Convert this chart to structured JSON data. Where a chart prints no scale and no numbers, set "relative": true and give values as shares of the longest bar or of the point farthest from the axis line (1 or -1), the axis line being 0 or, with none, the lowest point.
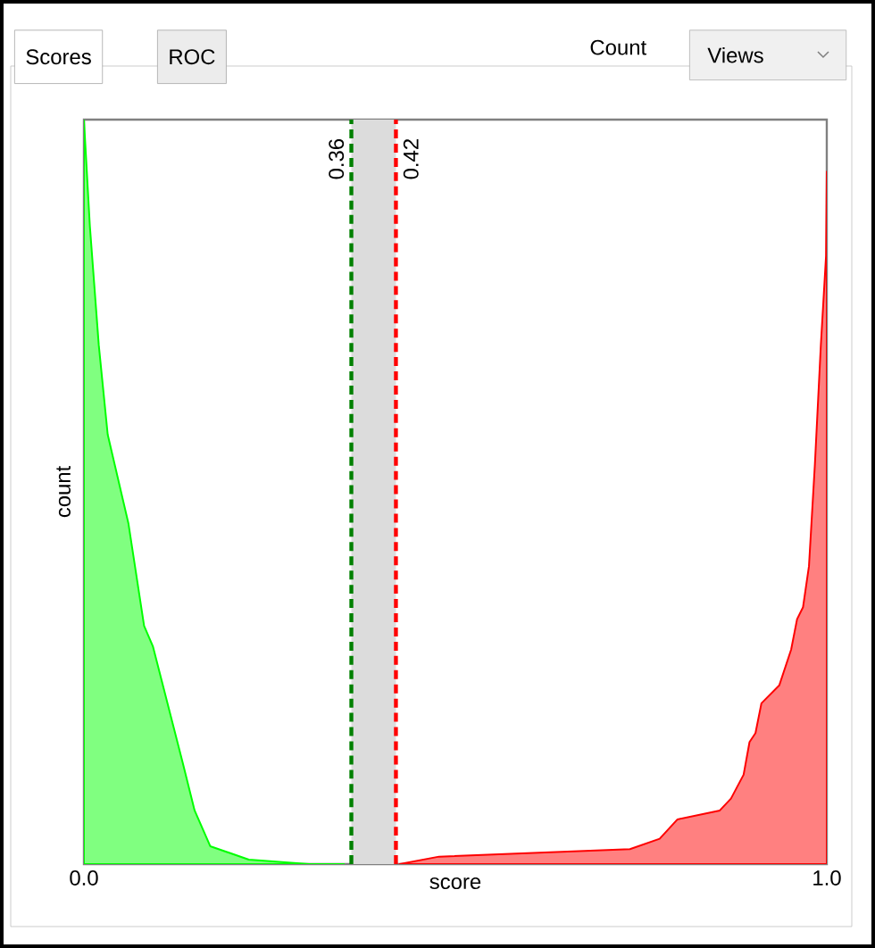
{
  "chart_data": {
    "type": "area",
    "relative": true,
    "xlabel": "score",
    "ylabel": "count",
    "xlim": [
      0,
      1
    ],
    "xticks": [
      {
        "value": 0,
        "label": "0.0"
      },
      {
        "value": 1,
        "label": "1.0"
      }
    ],
    "series": [
      {
        "color": "#80ff80",
        "x": [
          0,
          0.008,
          0.02,
          0.032,
          0.06,
          0.081,
          0.093,
          0.133,
          0.149,
          0.17,
          0.222,
          0.303,
          0.35
        ],
        "values": [
          1,
          0.857,
          0.697,
          0.577,
          0.457,
          0.32,
          0.292,
          0.136,
          0.072,
          0.024,
          0.006,
          0,
          0
        ]
      },
      {
        "color": "#ff8080",
        "x": [
          0.425,
          0.478,
          0.735,
          0.775,
          0.799,
          0.856,
          0.871,
          0.888,
          0.896,
          0.904,
          0.912,
          0.936,
          0.952,
          0.96,
          0.968,
          0.976,
          0.984,
          0.992,
          0.999,
          1.0
        ],
        "values": [
          0,
          0.01,
          0.02,
          0.034,
          0.06,
          0.072,
          0.088,
          0.12,
          0.164,
          0.176,
          0.216,
          0.24,
          0.288,
          0.329,
          0.345,
          0.4,
          0.537,
          0.697,
          0.817,
          0.93
        ]
      }
    ],
    "ref_lines": [
      {
        "axis": "x",
        "value": 0.36,
        "label": "0.36",
        "color": "#008000",
        "line_style": "dashed"
      },
      {
        "axis": "x",
        "value": 0.42,
        "label": "0.42",
        "color": "#ff0000",
        "line_style": "dashed"
      }
    ],
    "bands": [
      {
        "axis": "x",
        "from": 0.36,
        "to": 0.42,
        "color": "#dcdcdc"
      }
    ],
    "annotations": [
      "Scores",
      "ROC",
      "Count",
      "Views"
    ]
  }
}
